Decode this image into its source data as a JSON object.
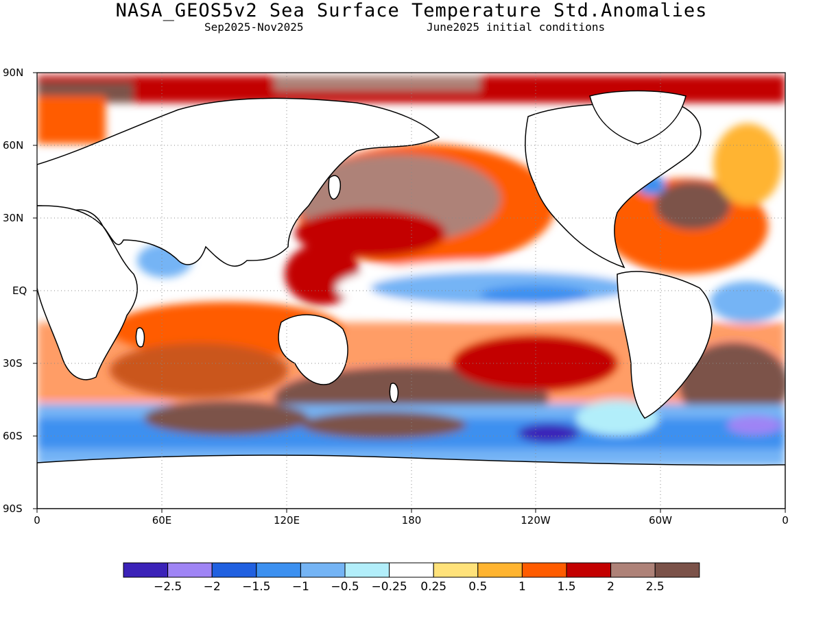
{
  "title": "NASA_GEOS5v2 Sea Surface Temperature Std.Anomalies",
  "subtitle_left": "Sep2025-Nov2025",
  "subtitle_right": "June2025 initial conditions",
  "lat_labels": [
    "90N",
    "60N",
    "30N",
    "EQ",
    "30S",
    "60S",
    "90S"
  ],
  "lon_labels": [
    "0",
    "60E",
    "120E",
    "180",
    "120W",
    "60W",
    "0"
  ],
  "colorbar": {
    "colors": [
      "#3b22b8",
      "#9f84f5",
      "#2060e0",
      "#3c90f0",
      "#74b4f5",
      "#b2eefa",
      "#ffffff",
      "#ffe27a",
      "#ffb430",
      "#ff5c00",
      "#c30000",
      "#ae8278",
      "#7b5249"
    ],
    "labels": [
      "-2.5",
      "-2",
      "-1.5",
      "-1",
      "-0.5",
      "-0.25",
      "0.25",
      "0.5",
      "1",
      "1.5",
      "2",
      "2.5"
    ]
  }
}
